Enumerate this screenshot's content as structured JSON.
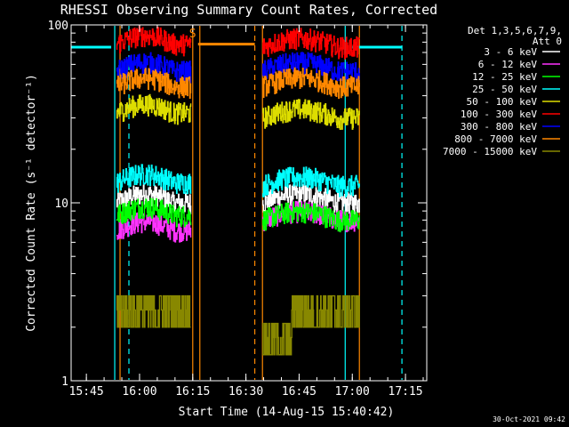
{
  "chart_data": {
    "type": "line",
    "title": "RHESSI Observing Summary Count Rates, Corrected",
    "xlabel": "Start Time (14-Aug-15 15:40:42)",
    "ylabel": "Corrected Count Rate (s⁻¹ detector⁻¹)",
    "y_scale": "log",
    "ylim": [
      1,
      100
    ],
    "xlim": [
      "15:40:42",
      "17:21:00"
    ],
    "x_ticks": [
      "15:45",
      "16:00",
      "16:15",
      "16:30",
      "16:45",
      "17:00",
      "17:15"
    ],
    "y_ticks": [
      "1",
      "10",
      "100"
    ],
    "legend": {
      "placement": "right",
      "header": [
        "Det 1,3,5,6,7,9,",
        "Att 0"
      ],
      "entries": [
        {
          "label": "3 - 6 keV",
          "color": "#ffffff"
        },
        {
          "label": "6 - 12 keV",
          "color": "#ff33ff"
        },
        {
          "label": "12 - 25 keV",
          "color": "#00ff00"
        },
        {
          "label": "25 - 50 keV",
          "color": "#00ffff"
        },
        {
          "label": "50 - 100 keV",
          "color": "#dddd00"
        },
        {
          "label": "100 - 300 keV",
          "color": "#ff0000"
        },
        {
          "label": "300 - 800 keV",
          "color": "#0000ff"
        },
        {
          "label": "800 - 7000 keV",
          "color": "#ff8800"
        },
        {
          "label": "7000 - 15000 keV",
          "color": "#888800"
        }
      ]
    },
    "annotation_s": "S",
    "timestamp": "30-Oct-2021 09:42",
    "segments": [
      {
        "start": "15:53:30",
        "end": "16:14:30"
      },
      {
        "start": "16:34:40",
        "end": "17:02:00"
      }
    ],
    "series": [
      {
        "name": "3 - 6 keV",
        "color": "#ffffff",
        "level": [
          10,
          10
        ]
      },
      {
        "name": "6 - 12 keV",
        "color": "#ff33ff",
        "level": [
          7,
          8
        ]
      },
      {
        "name": "12 - 25 keV",
        "color": "#00ff00",
        "level": [
          8.5,
          8
        ]
      },
      {
        "name": "25 - 50 keV",
        "color": "#00ffff",
        "level": [
          13,
          12.5
        ]
      },
      {
        "name": "50 - 100 keV",
        "color": "#dddd00",
        "level": [
          32,
          30
        ]
      },
      {
        "name": "100 - 300 keV",
        "color": "#ff0000",
        "level": [
          78,
          75
        ]
      },
      {
        "name": "300 - 800 keV",
        "color": "#0000ff",
        "level": [
          55,
          55
        ]
      },
      {
        "name": "800 - 7000 keV",
        "color": "#ff8800",
        "level": [
          45,
          45
        ]
      },
      {
        "name": "7000 - 15000 keV",
        "color": "#888800",
        "level": [
          2.5,
          2
        ]
      }
    ],
    "orange_bar": {
      "start": "16:16:30",
      "end": "16:32:30",
      "level": 78
    },
    "cyan_bars": [
      {
        "start": "15:40:42",
        "end": "15:52:00",
        "level": 75
      },
      {
        "start": "17:00:00",
        "end": "17:14:00",
        "level": 75
      }
    ],
    "markers": [
      {
        "time": "15:53:00",
        "color": "#00ffff",
        "style": "solid"
      },
      {
        "time": "15:57:00",
        "color": "#00ffff",
        "style": "dashed"
      },
      {
        "time": "15:54:30",
        "color": "#ff8800",
        "style": "solid"
      },
      {
        "time": "16:15:00",
        "color": "#ff8800",
        "style": "solid"
      },
      {
        "time": "16:17:00",
        "color": "#ff8800",
        "style": "solid"
      },
      {
        "time": "16:32:30",
        "color": "#ff8800",
        "style": "dashed"
      },
      {
        "time": "16:34:40",
        "color": "#ff8800",
        "style": "solid"
      },
      {
        "time": "16:58:00",
        "color": "#00ffff",
        "style": "solid"
      },
      {
        "time": "17:02:00",
        "color": "#ff8800",
        "style": "solid"
      },
      {
        "time": "17:14:00",
        "color": "#00ffff",
        "style": "dashed"
      }
    ]
  }
}
